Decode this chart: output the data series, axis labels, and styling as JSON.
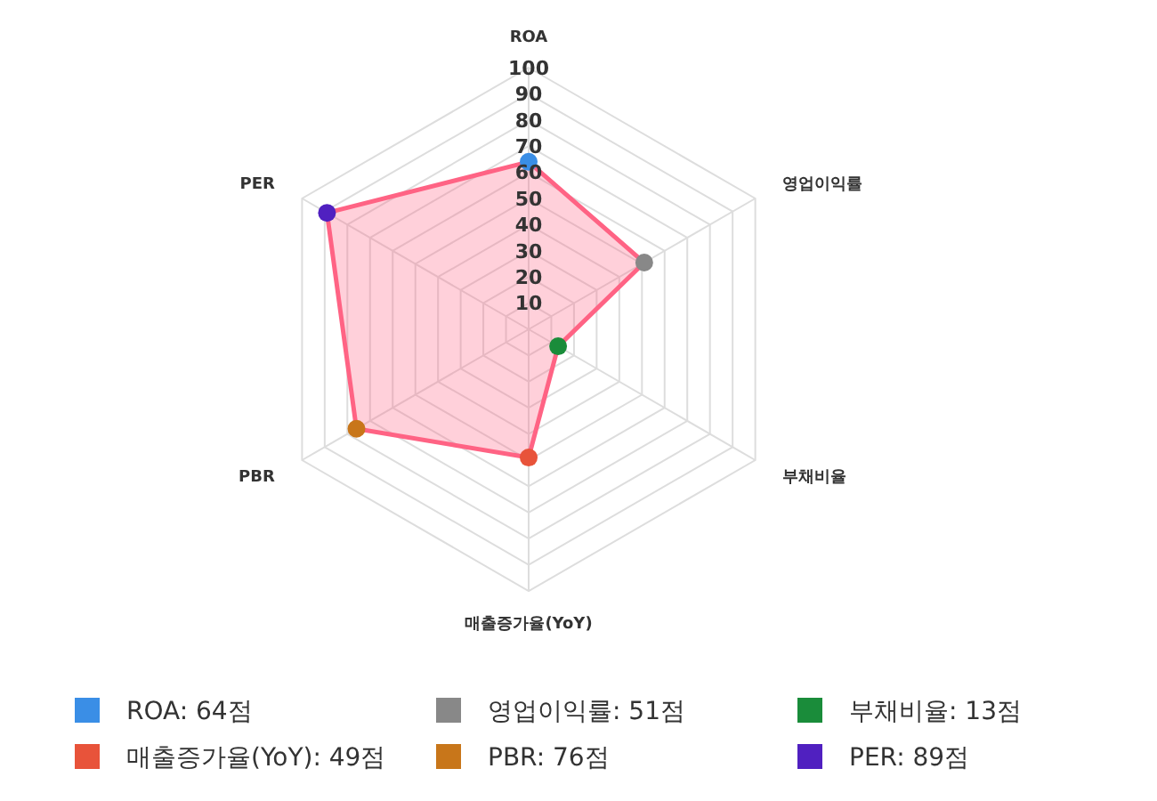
{
  "chart_data": {
    "type": "radar",
    "categories": [
      "ROA",
      "영업이익률",
      "부채비율",
      "매출증가율(YoY)",
      "PBR",
      "PER"
    ],
    "series": [
      {
        "color": "#ff6384",
        "values": [
          64,
          51,
          13,
          49,
          76,
          89
        ],
        "colors": [
          "#3a8ee6",
          "#888888",
          "#1a8c3a",
          "#e8533a",
          "#c8761a",
          "#5020c0"
        ]
      }
    ],
    "annotations": [
      "ROA: 64점",
      "영업이익률: 51점",
      "부채비율: 13점",
      "매출증가율(YoY): 49점",
      "PBR: 76점",
      "PER: 89점"
    ],
    "ylim": [
      0,
      100
    ],
    "yticks": [
      10,
      20,
      30,
      40,
      50,
      60,
      70,
      80,
      90,
      100
    ],
    "grid": true,
    "marker": "circle"
  }
}
